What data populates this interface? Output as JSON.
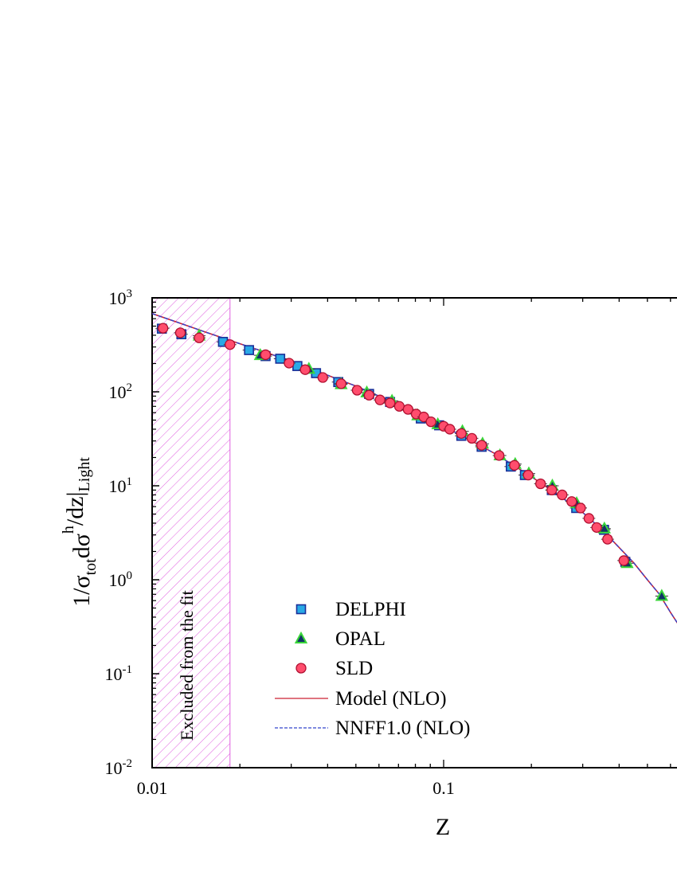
{
  "chart_data": {
    "type": "scatter",
    "title": "",
    "xlabel": "Z",
    "ylabel": {
      "parts": [
        "1/σ",
        "tot",
        "dσ",
        "h",
        "/dz|",
        "Light"
      ]
    },
    "xscale": "log",
    "yscale": "log",
    "xlim": [
      0.01,
      1
    ],
    "ylim": [
      0.01,
      1000
    ],
    "x_tick_labels": [
      "0.01",
      "0.1"
    ],
    "y_tick_labels": [
      {
        "base": "10",
        "exp": "-2"
      },
      {
        "base": "10",
        "exp": "-1"
      },
      {
        "base": "10",
        "exp": "0"
      },
      {
        "base": "10",
        "exp": "1"
      },
      {
        "base": "10",
        "exp": "2"
      },
      {
        "base": "10",
        "exp": "3"
      }
    ],
    "excluded_region": {
      "x": [
        0.01,
        0.0185
      ],
      "label": "Excluded from the fit",
      "color": "#e060e0"
    },
    "legend": {
      "placement": "lower-center",
      "entries": [
        {
          "label": "DELPHI",
          "marker": "square",
          "color": "#29a9e6"
        },
        {
          "label": "OPAL",
          "marker": "triangle",
          "color": "#3ad63a"
        },
        {
          "label": "SLD",
          "marker": "circle",
          "color": "#ff4d6d"
        },
        {
          "label": "Model (NLO)",
          "line": "solid",
          "color": "#cc2233"
        },
        {
          "label": "NNFF1.0 (NLO)",
          "line": "dashed",
          "color": "#3344cc"
        }
      ]
    },
    "series": [
      {
        "name": "DELPHI",
        "marker": "square",
        "points": [
          [
            0.0108,
            470
          ],
          [
            0.0126,
            410
          ],
          [
            0.0175,
            340
          ],
          [
            0.0215,
            278
          ],
          [
            0.0245,
            240
          ],
          [
            0.0275,
            225
          ],
          [
            0.0315,
            188
          ],
          [
            0.0365,
            158
          ],
          [
            0.0435,
            127
          ],
          [
            0.0555,
            95
          ],
          [
            0.0655,
            78
          ],
          [
            0.0835,
            52
          ],
          [
            0.0965,
            44
          ],
          [
            0.115,
            34
          ],
          [
            0.135,
            26
          ],
          [
            0.17,
            16
          ],
          [
            0.19,
            13
          ],
          [
            0.235,
            9
          ],
          [
            0.285,
            5.8
          ],
          [
            0.355,
            3.4
          ],
          [
            0.42,
            1.55
          ]
        ]
      },
      {
        "name": "OPAL",
        "marker": "triangle",
        "points": [
          [
            0.0145,
            395
          ],
          [
            0.0235,
            245
          ],
          [
            0.0345,
            175
          ],
          [
            0.0445,
            120
          ],
          [
            0.0545,
            98
          ],
          [
            0.0665,
            80
          ],
          [
            0.0815,
            56
          ],
          [
            0.0955,
            45
          ],
          [
            0.116,
            38
          ],
          [
            0.136,
            28
          ],
          [
            0.156,
            21
          ],
          [
            0.176,
            17
          ],
          [
            0.196,
            13.5
          ],
          [
            0.236,
            10
          ],
          [
            0.286,
            6.5
          ],
          [
            0.356,
            3.5
          ],
          [
            0.426,
            1.5
          ],
          [
            0.56,
            0.67
          ]
        ]
      },
      {
        "name": "SLD",
        "marker": "circle",
        "points": [
          [
            0.0109,
            475
          ],
          [
            0.0125,
            425
          ],
          [
            0.0145,
            375
          ],
          [
            0.0185,
            318
          ],
          [
            0.0245,
            248
          ],
          [
            0.0295,
            202
          ],
          [
            0.0335,
            172
          ],
          [
            0.0385,
            142
          ],
          [
            0.0445,
            122
          ],
          [
            0.0505,
            104
          ],
          [
            0.0555,
            92
          ],
          [
            0.0605,
            82
          ],
          [
            0.0655,
            76
          ],
          [
            0.0705,
            70
          ],
          [
            0.0755,
            65
          ],
          [
            0.0805,
            58
          ],
          [
            0.0855,
            54
          ],
          [
            0.0905,
            48
          ],
          [
            0.1,
            43
          ],
          [
            0.105,
            40
          ],
          [
            0.115,
            36
          ],
          [
            0.125,
            32
          ],
          [
            0.135,
            27
          ],
          [
            0.155,
            21
          ],
          [
            0.175,
            16.5
          ],
          [
            0.195,
            13
          ],
          [
            0.215,
            10.5
          ],
          [
            0.235,
            9
          ],
          [
            0.255,
            8
          ],
          [
            0.275,
            6.8
          ],
          [
            0.295,
            5.8
          ],
          [
            0.315,
            4.5
          ],
          [
            0.335,
            3.6
          ],
          [
            0.365,
            2.7
          ],
          [
            0.415,
            1.6
          ]
        ]
      }
    ],
    "curves": [
      {
        "name": "Model (NLO)",
        "style": "solid",
        "points": [
          [
            0.01,
            680
          ],
          [
            0.012,
            560
          ],
          [
            0.015,
            440
          ],
          [
            0.02,
            325
          ],
          [
            0.025,
            258
          ],
          [
            0.03,
            210
          ],
          [
            0.04,
            150
          ],
          [
            0.05,
            115
          ],
          [
            0.06,
            90
          ],
          [
            0.07,
            73
          ],
          [
            0.08,
            60
          ],
          [
            0.1,
            43
          ],
          [
            0.12,
            32
          ],
          [
            0.15,
            22
          ],
          [
            0.2,
            12.5
          ],
          [
            0.25,
            7.8
          ],
          [
            0.3,
            5.2
          ],
          [
            0.35,
            3.4
          ],
          [
            0.4,
            2.2
          ],
          [
            0.45,
            1.5
          ],
          [
            0.5,
            1.0
          ],
          [
            0.55,
            0.7
          ],
          [
            0.6,
            0.45
          ],
          [
            0.64,
            0.33
          ]
        ]
      },
      {
        "name": "NNFF1.0 (NLO)",
        "style": "dashed",
        "points": [
          [
            0.01,
            680
          ],
          [
            0.012,
            560
          ],
          [
            0.015,
            440
          ],
          [
            0.02,
            325
          ],
          [
            0.025,
            258
          ],
          [
            0.03,
            210
          ],
          [
            0.04,
            150
          ],
          [
            0.05,
            115
          ],
          [
            0.06,
            90
          ],
          [
            0.07,
            73
          ],
          [
            0.08,
            60
          ],
          [
            0.1,
            43
          ],
          [
            0.12,
            32
          ],
          [
            0.15,
            22
          ],
          [
            0.2,
            12.5
          ],
          [
            0.25,
            7.8
          ],
          [
            0.3,
            5.2
          ],
          [
            0.35,
            3.4
          ],
          [
            0.4,
            2.2
          ],
          [
            0.45,
            1.5
          ],
          [
            0.5,
            1.0
          ],
          [
            0.55,
            0.7
          ],
          [
            0.6,
            0.45
          ],
          [
            0.64,
            0.33
          ]
        ]
      }
    ]
  }
}
